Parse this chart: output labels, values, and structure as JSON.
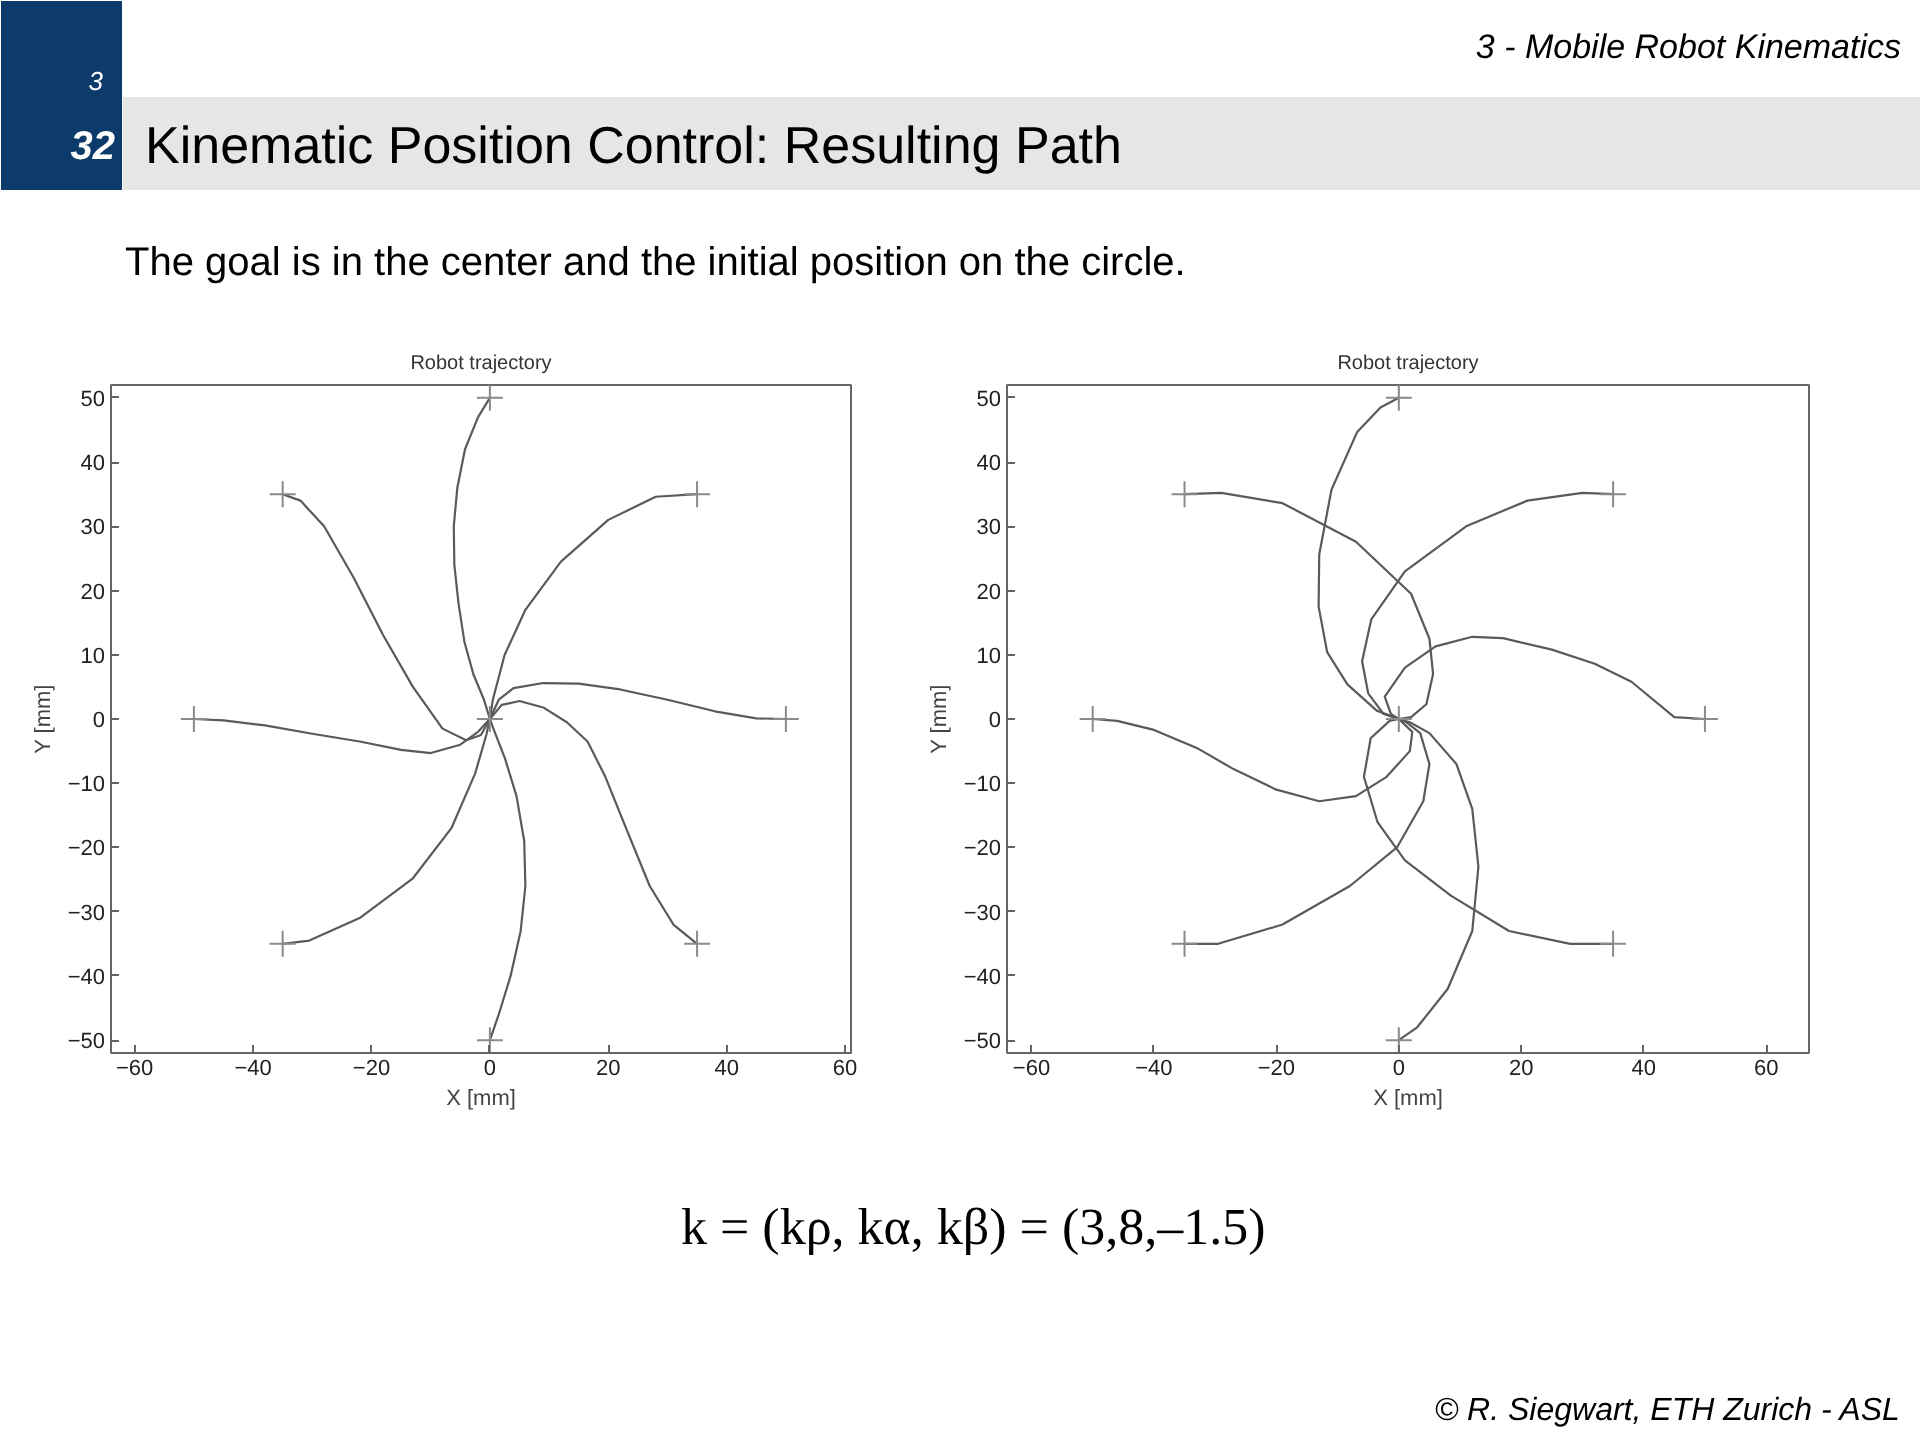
{
  "chart_data": [
    {
      "type": "other",
      "title": "Kinematic Position Control: Resulting Path",
      "subtitle": "3 - Mobile Robot Kinematics",
      "annotations": [
        "3",
        "32",
        "The goal is in the center and the initial position on the circle."
      ]
    },
    {
      "type": "line",
      "title": "Robot trajectory",
      "xlabel": "X [mm]",
      "ylabel": "Y [mm]",
      "xlim": [
        -64,
        61
      ],
      "ylim": [
        -52,
        52
      ],
      "xticks": [
        -60,
        -40,
        -20,
        0,
        20,
        40,
        60
      ],
      "yticks": [
        -50,
        -40,
        -30,
        -20,
        -10,
        0,
        10,
        20,
        30,
        40,
        50
      ],
      "grid": false,
      "line_style": "solid",
      "marker": "none",
      "series": [
        {
          "color": "#5a5a5a",
          "x": [
            0,
            -2,
            -4.2,
            -5.5,
            -6.1,
            -6,
            -5.3,
            -4.3,
            -2.8,
            -1,
            0
          ],
          "values": [
            50,
            47,
            42,
            36,
            30,
            24,
            18,
            12,
            7,
            3,
            0
          ]
        },
        {
          "color": "#5a5a5a",
          "x": [
            35,
            28,
            20,
            12,
            6,
            2.5,
            0.5,
            0
          ],
          "values": [
            35,
            34.6,
            31,
            24.5,
            17,
            10,
            3,
            0
          ]
        },
        {
          "color": "#5a5a5a",
          "x": [
            -35,
            -32,
            -28,
            -23,
            -18,
            -13,
            -8,
            -4,
            -1.5,
            0
          ],
          "values": [
            35,
            34,
            30,
            22,
            13,
            5,
            -1.5,
            -3.3,
            -2.5,
            0
          ]
        },
        {
          "color": "#5a5a5a",
          "x": [
            -50,
            -45,
            -38,
            -30,
            -22,
            -15,
            -10,
            -5,
            -2,
            0
          ],
          "values": [
            0,
            -0.2,
            -1,
            -2.3,
            -3.5,
            -4.8,
            -5.3,
            -4,
            -2,
            0
          ]
        },
        {
          "color": "#5a5a5a",
          "x": [
            50,
            45,
            38,
            30,
            22,
            15,
            9,
            4,
            1.5,
            0
          ],
          "values": [
            0,
            0.1,
            1.2,
            3,
            4.6,
            5.5,
            5.6,
            4.8,
            3,
            0
          ]
        },
        {
          "color": "#5a5a5a",
          "x": [
            35,
            31,
            27,
            23,
            19.5,
            16.5,
            13,
            9,
            5,
            2,
            0
          ],
          "values": [
            -35,
            -32,
            -26,
            -17,
            -9,
            -3.5,
            -0.5,
            1.8,
            2.8,
            2.2,
            0
          ]
        },
        {
          "color": "#5a5a5a",
          "x": [
            -35,
            -30.5,
            -22,
            -13,
            -6.5,
            -2.5,
            -0.6,
            0
          ],
          "values": [
            -35,
            -34.5,
            -31,
            -24.8,
            -17,
            -8.5,
            -2.5,
            0
          ]
        },
        {
          "color": "#5a5a5a",
          "x": [
            0,
            1.5,
            3.5,
            5.2,
            6,
            5.8,
            4.5,
            2.5,
            0.8,
            0
          ],
          "values": [
            -50,
            -46,
            -40,
            -33,
            -26,
            -19,
            -12,
            -6,
            -2,
            0
          ]
        },
        {
          "type": "scatter",
          "marker": "cross",
          "color": "#8a8a8a",
          "x": [
            0,
            35,
            -35,
            -50,
            50,
            35,
            -35,
            0,
            0
          ],
          "values": [
            50,
            35,
            35,
            0,
            0,
            -35,
            -35,
            -50,
            0
          ]
        }
      ]
    },
    {
      "type": "line",
      "title": "Robot trajectory",
      "xlabel": "X [mm]",
      "ylabel": "Y [mm]",
      "xlim": [
        -64,
        67
      ],
      "ylim": [
        -52,
        52
      ],
      "xticks": [
        -60,
        -40,
        -20,
        0,
        20,
        40,
        60
      ],
      "yticks": [
        -50,
        -40,
        -30,
        -20,
        -10,
        0,
        10,
        20,
        30,
        40,
        50
      ],
      "grid": false,
      "line_style": "solid",
      "marker": "none",
      "series": [
        {
          "color": "#5a5a5a",
          "x": [
            0,
            -3,
            -6.8,
            -11,
            -13,
            -13.1,
            -11.7,
            -8.4,
            -3.6,
            0
          ],
          "values": [
            50,
            48.5,
            44.7,
            35.7,
            25.6,
            17.5,
            10.4,
            5.4,
            1.3,
            0
          ]
        },
        {
          "color": "#5a5a5a",
          "x": [
            35,
            30,
            21,
            11,
            1,
            -4.5,
            -6,
            -5,
            -2.5,
            0
          ],
          "values": [
            35,
            35.2,
            34,
            30,
            23,
            15.5,
            9,
            4,
            0.8,
            0
          ]
        },
        {
          "color": "#5a5a5a",
          "x": [
            -35,
            -29,
            -19,
            -7,
            2,
            5,
            5.6,
            4.5,
            2,
            0
          ],
          "values": [
            35,
            35.2,
            33.6,
            27.6,
            19.5,
            12.5,
            7,
            2.3,
            0.3,
            0
          ]
        },
        {
          "color": "#5a5a5a",
          "x": [
            -50,
            -46,
            -40,
            -33,
            -27,
            -20,
            -13,
            -7,
            -2,
            1.8,
            2.2,
            0
          ],
          "values": [
            0,
            -0.3,
            -1.7,
            -4.5,
            -7.8,
            -11,
            -12.8,
            -12,
            -9,
            -5,
            -2,
            0
          ]
        },
        {
          "color": "#5a5a5a",
          "x": [
            50,
            45,
            38,
            32,
            25,
            17,
            12,
            6,
            1,
            -2.3,
            -1.3,
            0
          ],
          "values": [
            0,
            0.3,
            5.8,
            8.6,
            10.8,
            12.6,
            12.8,
            11.3,
            8,
            3.5,
            0.8,
            0
          ]
        },
        {
          "color": "#5a5a5a",
          "x": [
            35,
            28,
            18,
            8.5,
            1,
            -3.5,
            -5.7,
            -4.6,
            -1.5,
            0
          ],
          "values": [
            -35,
            -35,
            -33,
            -27.5,
            -22,
            -16,
            -9,
            -3,
            -0.3,
            0
          ]
        },
        {
          "color": "#5a5a5a",
          "x": [
            -35,
            -29.5,
            -19,
            -8,
            -0.3,
            4,
            5,
            3.5,
            1.2,
            0
          ],
          "values": [
            -35,
            -35,
            -32,
            -26,
            -20,
            -12.8,
            -7,
            -2.2,
            -0.5,
            0
          ]
        },
        {
          "color": "#5a5a5a",
          "x": [
            0,
            3,
            8,
            12,
            13,
            12,
            9.4,
            5,
            1.8,
            0
          ],
          "values": [
            -50,
            -48,
            -42,
            -33,
            -23,
            -14,
            -7,
            -2.2,
            -0.5,
            0
          ]
        },
        {
          "type": "scatter",
          "marker": "cross",
          "color": "#8a8a8a",
          "x": [
            0,
            35,
            -35,
            -50,
            50,
            35,
            -35,
            0,
            0
          ],
          "values": [
            50,
            35,
            35,
            0,
            0,
            -35,
            -35,
            -50,
            0
          ]
        }
      ]
    },
    {
      "type": "other",
      "annotations": [
        "k = (kρ, kα, kβ) = (3,8,–1.5)",
        "© R. Siegwart, ETH Zurich - ASL"
      ]
    }
  ]
}
